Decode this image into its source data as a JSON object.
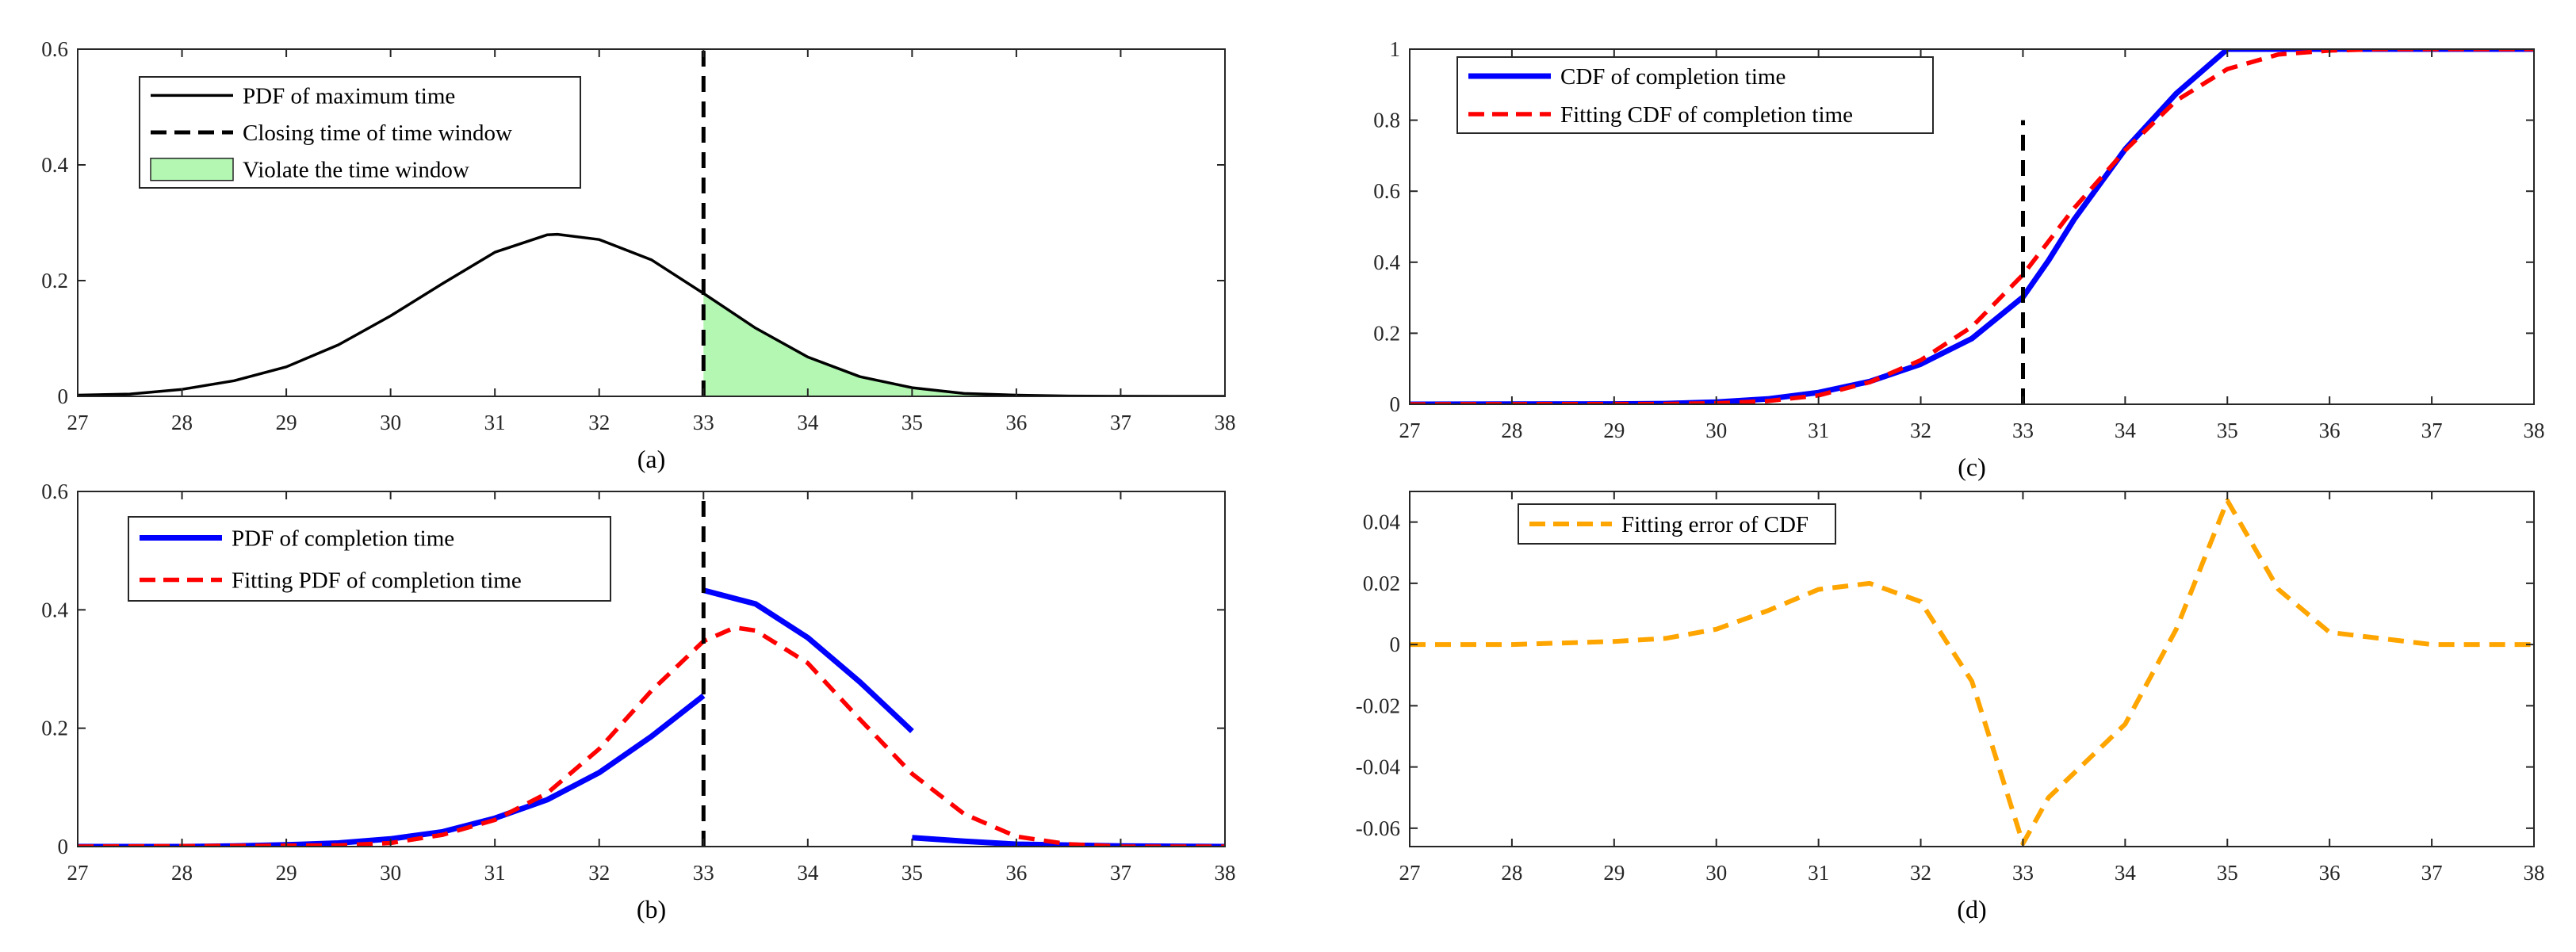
{
  "chart_data": [
    {
      "id": "a",
      "type": "line",
      "caption": "(a)",
      "xlim": [
        27,
        38
      ],
      "ylim": [
        0,
        0.6
      ],
      "xticks": [
        "27",
        "28",
        "29",
        "30",
        "31",
        "32",
        "33",
        "34",
        "35",
        "36",
        "37",
        "38"
      ],
      "yticks": [
        "0",
        "0.2",
        "0.4",
        "0.6"
      ],
      "legend_position": "top-left",
      "series": [
        {
          "name": "PDF of maximum time",
          "style": "solid",
          "color": "#000000",
          "x": [
            27,
            27.5,
            28,
            28.5,
            29,
            29.5,
            30,
            30.5,
            31,
            31.5,
            31.6,
            32,
            32.5,
            33,
            33.5,
            34,
            34.5,
            35,
            35.5,
            36,
            36.5,
            37,
            37.5,
            38
          ],
          "y": [
            0.002,
            0.004,
            0.012,
            0.027,
            0.051,
            0.089,
            0.139,
            0.195,
            0.249,
            0.279,
            0.28,
            0.271,
            0.236,
            0.178,
            0.118,
            0.068,
            0.034,
            0.015,
            0.005,
            0.002,
            0.0005,
            0.0001,
            0,
            0
          ]
        },
        {
          "name": "Closing time of time window",
          "style": "dashed",
          "color": "#000000",
          "x": [
            33,
            33
          ],
          "y": [
            0,
            0.6
          ]
        }
      ],
      "fill": {
        "name": "Violate the time window",
        "color": "#b3f7b3",
        "from_x": 33
      }
    },
    {
      "id": "b",
      "type": "line",
      "caption": "(b)",
      "xlim": [
        27,
        38
      ],
      "ylim": [
        0,
        0.6
      ],
      "xticks": [
        "27",
        "28",
        "29",
        "30",
        "31",
        "32",
        "33",
        "34",
        "35",
        "36",
        "37",
        "38"
      ],
      "yticks": [
        "0",
        "0.2",
        "0.4",
        "0.6"
      ],
      "legend_position": "top-left",
      "series": [
        {
          "name": "PDF of completion time",
          "style": "solid",
          "color": "#0000ff",
          "segments": [
            {
              "x": [
                27,
                28,
                28.5,
                29,
                29.5,
                30,
                30.5,
                31,
                31.5,
                32,
                32.5,
                33
              ],
              "y": [
                0,
                0,
                0.001,
                0.003,
                0.006,
                0.013,
                0.025,
                0.048,
                0.079,
                0.125,
                0.186,
                0.255
              ]
            },
            {
              "x": [
                33,
                33.5,
                34,
                34.5,
                35
              ],
              "y": [
                0.433,
                0.41,
                0.353,
                0.278,
                0.195
              ]
            },
            {
              "x": [
                35,
                35.5,
                36,
                37,
                38
              ],
              "y": [
                0.015,
                0.009,
                0.004,
                0.001,
                0
              ]
            }
          ]
        },
        {
          "name": "Fitting PDF of completion time",
          "style": "dashed",
          "color": "#ff0000",
          "x": [
            27,
            29.5,
            30,
            30.5,
            31,
            31.5,
            32,
            32.5,
            33,
            33.3,
            33.5,
            34,
            34.5,
            35,
            35.5,
            36,
            36.5,
            37,
            38
          ],
          "y": [
            0,
            0.002,
            0.006,
            0.02,
            0.045,
            0.09,
            0.165,
            0.263,
            0.347,
            0.37,
            0.365,
            0.31,
            0.215,
            0.123,
            0.055,
            0.017,
            0.004,
            0,
            0
          ]
        },
        {
          "name": "Closing time of time window",
          "style": "dashed",
          "color": "#000000",
          "in_legend": false,
          "x": [
            33,
            33
          ],
          "y": [
            0,
            0.6
          ]
        }
      ]
    },
    {
      "id": "c",
      "type": "line",
      "caption": "(c)",
      "xlim": [
        27,
        38
      ],
      "ylim": [
        0,
        1
      ],
      "xticks": [
        "27",
        "28",
        "29",
        "30",
        "31",
        "32",
        "33",
        "34",
        "35",
        "36",
        "37",
        "38"
      ],
      "yticks": [
        "0",
        "0.2",
        "0.4",
        "0.6",
        "0.8",
        "1"
      ],
      "legend_position": "top-left",
      "series": [
        {
          "name": "CDF of completion time",
          "style": "solid",
          "color": "#0000ff",
          "x": [
            27,
            29,
            29.5,
            30,
            30.5,
            31,
            31.5,
            32,
            32.5,
            33,
            33.25,
            33.5,
            34,
            34.5,
            35,
            35.5,
            36,
            37,
            38
          ],
          "y": [
            0,
            0.001,
            0.002,
            0.006,
            0.015,
            0.033,
            0.064,
            0.113,
            0.185,
            0.302,
            0.405,
            0.52,
            0.718,
            0.875,
            1.0,
            1.0,
            1.0,
            1.0,
            1.0
          ]
        },
        {
          "name": "Fitting CDF of completion time",
          "style": "dashed",
          "color": "#ff0000",
          "x": [
            27,
            29.5,
            30,
            30.5,
            31,
            31.5,
            32,
            32.5,
            33,
            33.5,
            34,
            34.5,
            35,
            35.5,
            36,
            36.5,
            37,
            38
          ],
          "y": [
            0,
            0.001,
            0.003,
            0.009,
            0.025,
            0.062,
            0.124,
            0.218,
            0.365,
            0.552,
            0.715,
            0.855,
            0.944,
            0.985,
            0.996,
            1.0,
            1.0,
            1.0
          ]
        },
        {
          "name": "Closing time of time window",
          "style": "dashed",
          "color": "#000000",
          "in_legend": false,
          "x": [
            33,
            33
          ],
          "y": [
            0,
            0.8
          ]
        }
      ]
    },
    {
      "id": "d",
      "type": "line",
      "caption": "(d)",
      "xlim": [
        27,
        38
      ],
      "ylim": [
        -0.066,
        0.05
      ],
      "xticks": [
        "27",
        "28",
        "29",
        "30",
        "31",
        "32",
        "33",
        "34",
        "35",
        "36",
        "37",
        "38"
      ],
      "yticks": [
        "-0.06",
        "-0.04",
        "-0.02",
        "0",
        "0.02",
        "0.04"
      ],
      "ytick_values": [
        -0.06,
        -0.04,
        -0.02,
        0,
        0.02,
        0.04
      ],
      "legend_position": "top-left",
      "series": [
        {
          "name": "Fitting error of CDF",
          "style": "dashed",
          "color": "#ffa500",
          "x": [
            27,
            28,
            29,
            29.5,
            30,
            30.5,
            31,
            31.5,
            32,
            32.5,
            33,
            33.25,
            33.5,
            34,
            34.5,
            35,
            35.5,
            36,
            37,
            38
          ],
          "y": [
            0,
            0,
            0.001,
            0.002,
            0.005,
            0.011,
            0.018,
            0.02,
            0.014,
            -0.012,
            -0.065,
            -0.05,
            -0.042,
            -0.026,
            0.005,
            0.047,
            0.018,
            0.004,
            0,
            0
          ]
        }
      ]
    }
  ]
}
